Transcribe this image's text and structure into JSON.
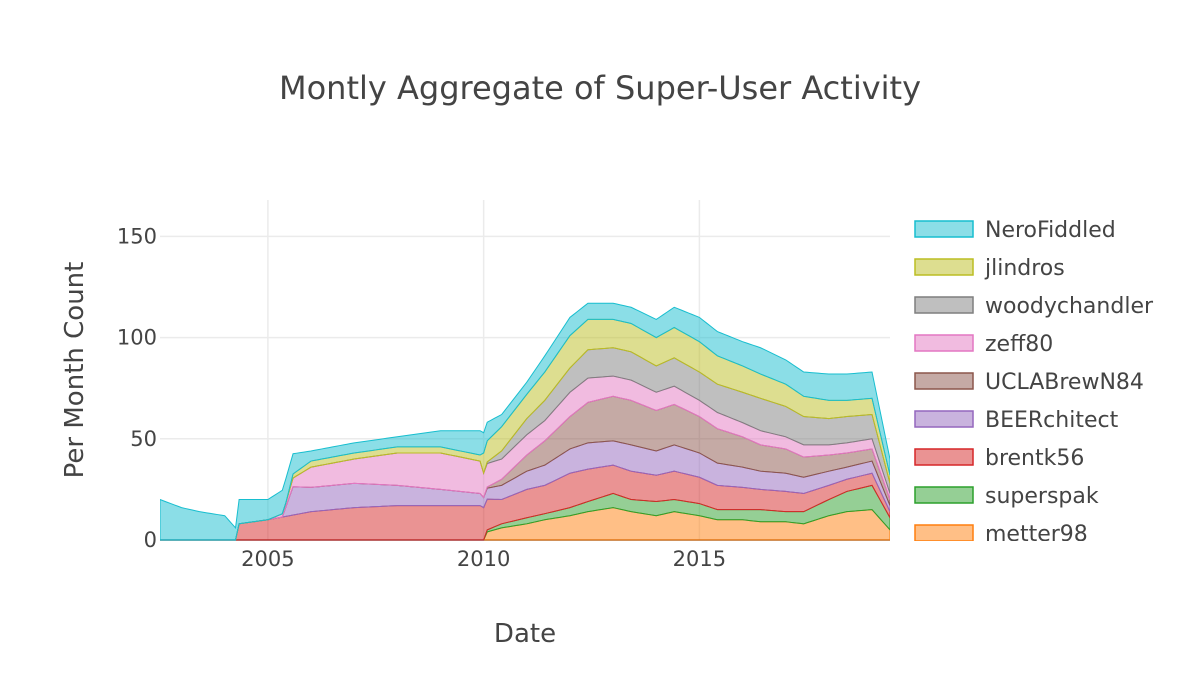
{
  "chart_data": {
    "type": "area",
    "stacked": true,
    "title": "Montly Aggregate of Super-User Activity",
    "xlabel": "Date",
    "ylabel": "Per Month Count",
    "x_range": [
      "2002-07",
      "2019-06"
    ],
    "ylim": [
      0,
      168
    ],
    "x_ticks": [
      {
        "date": "2005-01",
        "label": "2005"
      },
      {
        "date": "2010-01",
        "label": "2010"
      },
      {
        "date": "2015-01",
        "label": "2015"
      }
    ],
    "y_ticks": [
      {
        "value": 0,
        "label": "0"
      },
      {
        "value": 50,
        "label": "50"
      },
      {
        "value": 100,
        "label": "100"
      },
      {
        "value": 150,
        "label": "150"
      }
    ],
    "grid": true,
    "legend_position": "right",
    "series": [
      {
        "name": "metter98",
        "color": "#ff7f0e",
        "points": [
          [
            "2002-07",
            0
          ],
          [
            "2010-01",
            0
          ],
          [
            "2010-02",
            4
          ],
          [
            "2010-06",
            6
          ],
          [
            "2011-01",
            8
          ],
          [
            "2011-06",
            10
          ],
          [
            "2012-01",
            12
          ],
          [
            "2012-06",
            14
          ],
          [
            "2013-01",
            16
          ],
          [
            "2013-06",
            14
          ],
          [
            "2014-01",
            12
          ],
          [
            "2014-06",
            14
          ],
          [
            "2015-01",
            12
          ],
          [
            "2015-06",
            10
          ],
          [
            "2016-01",
            10
          ],
          [
            "2016-06",
            9
          ],
          [
            "2017-01",
            9
          ],
          [
            "2017-06",
            8
          ],
          [
            "2018-01",
            12
          ],
          [
            "2018-06",
            14
          ],
          [
            "2019-01",
            15
          ],
          [
            "2019-06",
            5
          ]
        ]
      },
      {
        "name": "superspak",
        "color": "#2ca02c",
        "points": [
          [
            "2002-07",
            0
          ],
          [
            "2010-01",
            0
          ],
          [
            "2010-02",
            1
          ],
          [
            "2010-06",
            2
          ],
          [
            "2011-01",
            3
          ],
          [
            "2011-06",
            3
          ],
          [
            "2012-01",
            4
          ],
          [
            "2012-06",
            5
          ],
          [
            "2013-01",
            7
          ],
          [
            "2013-06",
            6
          ],
          [
            "2014-01",
            7
          ],
          [
            "2014-06",
            6
          ],
          [
            "2015-01",
            6
          ],
          [
            "2015-06",
            5
          ],
          [
            "2016-01",
            5
          ],
          [
            "2016-06",
            6
          ],
          [
            "2017-01",
            5
          ],
          [
            "2017-06",
            6
          ],
          [
            "2018-01",
            8
          ],
          [
            "2018-06",
            10
          ],
          [
            "2019-01",
            12
          ],
          [
            "2019-06",
            6
          ]
        ]
      },
      {
        "name": "brentk56",
        "color": "#d62728",
        "points": [
          [
            "2002-07",
            0
          ],
          [
            "2004-04",
            0
          ],
          [
            "2004-05",
            8
          ],
          [
            "2005-01",
            10
          ],
          [
            "2006-01",
            14
          ],
          [
            "2007-01",
            16
          ],
          [
            "2008-01",
            17
          ],
          [
            "2009-01",
            17
          ],
          [
            "2009-12",
            17
          ],
          [
            "2010-01",
            16
          ],
          [
            "2010-06",
            12
          ],
          [
            "2011-01",
            14
          ],
          [
            "2011-06",
            14
          ],
          [
            "2012-01",
            17
          ],
          [
            "2012-06",
            16
          ],
          [
            "2013-01",
            14
          ],
          [
            "2013-06",
            14
          ],
          [
            "2014-01",
            13
          ],
          [
            "2014-06",
            14
          ],
          [
            "2015-01",
            13
          ],
          [
            "2015-06",
            12
          ],
          [
            "2016-01",
            11
          ],
          [
            "2016-06",
            10
          ],
          [
            "2017-01",
            10
          ],
          [
            "2017-06",
            9
          ],
          [
            "2018-01",
            7
          ],
          [
            "2018-06",
            6
          ],
          [
            "2019-01",
            6
          ],
          [
            "2019-06",
            3
          ]
        ]
      },
      {
        "name": "BEERchitect",
        "color": "#9467bd",
        "points": [
          [
            "2002-07",
            0
          ],
          [
            "2005-05",
            0
          ],
          [
            "2005-08",
            14
          ],
          [
            "2006-01",
            12
          ],
          [
            "2007-01",
            12
          ],
          [
            "2008-01",
            10
          ],
          [
            "2009-01",
            8
          ],
          [
            "2009-12",
            6
          ],
          [
            "2010-01",
            5
          ],
          [
            "2010-06",
            7
          ],
          [
            "2011-01",
            9
          ],
          [
            "2011-06",
            10
          ],
          [
            "2012-01",
            12
          ],
          [
            "2012-06",
            13
          ],
          [
            "2013-01",
            12
          ],
          [
            "2013-06",
            13
          ],
          [
            "2014-01",
            12
          ],
          [
            "2014-06",
            13
          ],
          [
            "2015-01",
            12
          ],
          [
            "2015-06",
            11
          ],
          [
            "2016-01",
            10
          ],
          [
            "2016-06",
            9
          ],
          [
            "2017-01",
            9
          ],
          [
            "2017-06",
            8
          ],
          [
            "2018-01",
            7
          ],
          [
            "2018-06",
            6
          ],
          [
            "2019-01",
            6
          ],
          [
            "2019-06",
            3
          ]
        ]
      },
      {
        "name": "UCLABrewN84",
        "color": "#8c564b",
        "points": [
          [
            "2002-07",
            0
          ],
          [
            "2010-01",
            0
          ],
          [
            "2010-06",
            3
          ],
          [
            "2011-01",
            8
          ],
          [
            "2011-06",
            12
          ],
          [
            "2012-01",
            16
          ],
          [
            "2012-06",
            20
          ],
          [
            "2013-01",
            22
          ],
          [
            "2013-06",
            22
          ],
          [
            "2014-01",
            20
          ],
          [
            "2014-06",
            20
          ],
          [
            "2015-01",
            18
          ],
          [
            "2015-06",
            17
          ],
          [
            "2016-01",
            15
          ],
          [
            "2016-06",
            13
          ],
          [
            "2017-01",
            12
          ],
          [
            "2017-06",
            10
          ],
          [
            "2018-01",
            8
          ],
          [
            "2018-06",
            7
          ],
          [
            "2019-01",
            6
          ],
          [
            "2019-06",
            3
          ]
        ]
      },
      {
        "name": "zeff80",
        "color": "#e377c2",
        "points": [
          [
            "2002-07",
            0
          ],
          [
            "2005-01",
            0
          ],
          [
            "2005-06",
            2
          ],
          [
            "2006-01",
            10
          ],
          [
            "2007-01",
            12
          ],
          [
            "2008-01",
            16
          ],
          [
            "2009-01",
            18
          ],
          [
            "2009-12",
            16
          ],
          [
            "2010-01",
            12
          ],
          [
            "2010-06",
            10
          ],
          [
            "2011-01",
            10
          ],
          [
            "2011-06",
            10
          ],
          [
            "2012-01",
            12
          ],
          [
            "2012-06",
            12
          ],
          [
            "2013-01",
            10
          ],
          [
            "2013-06",
            10
          ],
          [
            "2014-01",
            9
          ],
          [
            "2014-06",
            9
          ],
          [
            "2015-01",
            8
          ],
          [
            "2015-06",
            8
          ],
          [
            "2016-01",
            7
          ],
          [
            "2016-06",
            7
          ],
          [
            "2017-01",
            6
          ],
          [
            "2017-06",
            6
          ],
          [
            "2018-01",
            5
          ],
          [
            "2018-06",
            5
          ],
          [
            "2019-01",
            5
          ],
          [
            "2019-06",
            3
          ]
        ]
      },
      {
        "name": "woodychandler",
        "color": "#7f7f7f",
        "points": [
          [
            "2002-07",
            0
          ],
          [
            "2010-01",
            0
          ],
          [
            "2010-06",
            4
          ],
          [
            "2011-01",
            8
          ],
          [
            "2011-06",
            10
          ],
          [
            "2012-01",
            12
          ],
          [
            "2012-06",
            14
          ],
          [
            "2013-01",
            14
          ],
          [
            "2013-06",
            14
          ],
          [
            "2014-01",
            13
          ],
          [
            "2014-06",
            14
          ],
          [
            "2015-01",
            14
          ],
          [
            "2015-06",
            14
          ],
          [
            "2016-01",
            15
          ],
          [
            "2016-06",
            16
          ],
          [
            "2017-01",
            15
          ],
          [
            "2017-06",
            14
          ],
          [
            "2018-01",
            13
          ],
          [
            "2018-06",
            13
          ],
          [
            "2019-01",
            12
          ],
          [
            "2019-06",
            5
          ]
        ]
      },
      {
        "name": "jlindros",
        "color": "#bcbd22",
        "points": [
          [
            "2002-07",
            0
          ],
          [
            "2005-06",
            0
          ],
          [
            "2005-08",
            2
          ],
          [
            "2006-01",
            3
          ],
          [
            "2007-01",
            3
          ],
          [
            "2008-01",
            3
          ],
          [
            "2009-01",
            3
          ],
          [
            "2009-12",
            3
          ],
          [
            "2010-01",
            10
          ],
          [
            "2010-06",
            12
          ],
          [
            "2011-01",
            12
          ],
          [
            "2011-06",
            14
          ],
          [
            "2012-01",
            16
          ],
          [
            "2012-06",
            15
          ],
          [
            "2013-01",
            14
          ],
          [
            "2013-06",
            14
          ],
          [
            "2014-01",
            14
          ],
          [
            "2014-06",
            15
          ],
          [
            "2015-01",
            15
          ],
          [
            "2015-06",
            14
          ],
          [
            "2016-01",
            13
          ],
          [
            "2016-06",
            12
          ],
          [
            "2017-01",
            11
          ],
          [
            "2017-06",
            10
          ],
          [
            "2018-01",
            9
          ],
          [
            "2018-06",
            8
          ],
          [
            "2019-01",
            8
          ],
          [
            "2019-06",
            4
          ]
        ]
      },
      {
        "name": "NeroFiddled",
        "color": "#17becf",
        "points": [
          [
            "2002-07",
            20
          ],
          [
            "2002-10",
            18
          ],
          [
            "2003-01",
            16
          ],
          [
            "2003-06",
            14
          ],
          [
            "2004-01",
            12
          ],
          [
            "2004-04",
            6
          ],
          [
            "2004-05",
            12
          ],
          [
            "2005-01",
            10
          ],
          [
            "2005-06",
            12
          ],
          [
            "2005-08",
            10
          ],
          [
            "2006-01",
            5
          ],
          [
            "2007-01",
            5
          ],
          [
            "2008-01",
            5
          ],
          [
            "2009-01",
            8
          ],
          [
            "2009-12",
            12
          ],
          [
            "2010-01",
            10
          ],
          [
            "2010-06",
            6
          ],
          [
            "2011-01",
            6
          ],
          [
            "2011-06",
            8
          ],
          [
            "2012-01",
            9
          ],
          [
            "2012-06",
            8
          ],
          [
            "2013-01",
            8
          ],
          [
            "2013-06",
            8
          ],
          [
            "2014-01",
            9
          ],
          [
            "2014-06",
            10
          ],
          [
            "2015-01",
            12
          ],
          [
            "2015-06",
            12
          ],
          [
            "2016-01",
            12
          ],
          [
            "2016-06",
            13
          ],
          [
            "2017-01",
            12
          ],
          [
            "2017-06",
            12
          ],
          [
            "2018-01",
            13
          ],
          [
            "2018-06",
            13
          ],
          [
            "2019-01",
            13
          ],
          [
            "2019-06",
            8
          ]
        ]
      }
    ]
  }
}
